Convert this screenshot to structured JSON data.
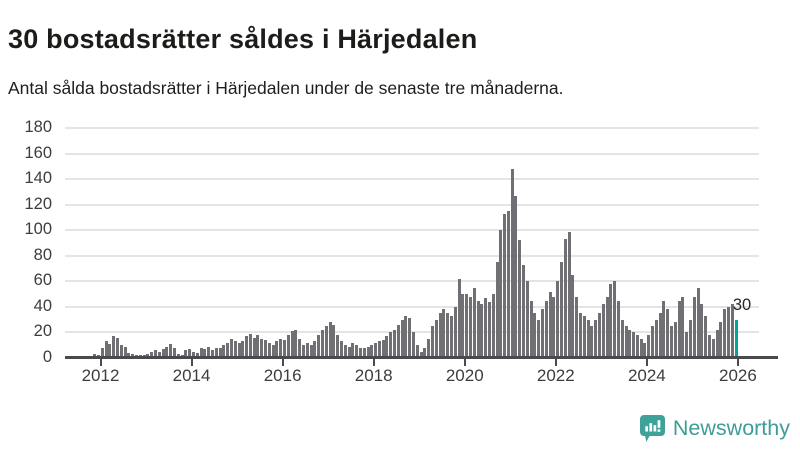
{
  "header": {
    "title": "30 bostadsrätter såldes i Härjedalen",
    "subtitle": "Antal sålda bostadsrätter i Härjedalen under de senaste tre månaderna."
  },
  "chart_data": {
    "type": "bar",
    "title": "30 bostadsrätter såldes i Härjedalen",
    "subtitle": "Antal sålda bostadsrätter i Härjedalen under de senaste tre månaderna.",
    "x_start_month": "2011-11",
    "frequency": "monthly",
    "values": [
      3,
      2,
      8,
      13,
      11,
      17,
      16,
      10,
      9,
      4,
      3,
      2,
      2,
      2,
      3,
      5,
      6,
      5,
      7,
      9,
      11,
      8,
      3,
      2,
      6,
      7,
      5,
      4,
      8,
      7,
      9,
      6,
      8,
      8,
      10,
      12,
      15,
      13,
      12,
      13,
      17,
      19,
      16,
      18,
      15,
      14,
      12,
      10,
      13,
      15,
      14,
      18,
      21,
      22,
      15,
      10,
      12,
      10,
      13,
      18,
      22,
      25,
      28,
      26,
      18,
      13,
      10,
      9,
      12,
      10,
      8,
      8,
      9,
      10,
      12,
      13,
      14,
      17,
      20,
      22,
      26,
      30,
      33,
      31,
      20,
      10,
      5,
      8,
      15,
      25,
      30,
      35,
      38,
      35,
      33,
      40,
      62,
      50,
      50,
      48,
      55,
      45,
      42,
      47,
      44,
      50,
      75,
      100,
      113,
      115,
      148,
      127,
      92,
      73,
      60,
      45,
      35,
      30,
      38,
      45,
      52,
      48,
      60,
      75,
      93,
      99,
      65,
      48,
      35,
      33,
      30,
      25,
      30,
      35,
      42,
      48,
      58,
      60,
      45,
      30,
      25,
      22,
      20,
      18,
      15,
      12,
      18,
      25,
      30,
      35,
      45,
      38,
      25,
      28,
      45,
      48,
      20,
      30,
      48,
      55,
      42,
      33,
      18,
      15,
      22,
      28,
      38,
      40,
      42,
      30
    ],
    "highlight_index": 169,
    "highlight_label": "30",
    "y_ticks": [
      0,
      20,
      40,
      60,
      80,
      100,
      120,
      140,
      160,
      180
    ],
    "x_tick_labels": [
      "2012",
      "2014",
      "2016",
      "2018",
      "2020",
      "2022",
      "2024",
      "2026"
    ],
    "x_tick_years": [
      2012,
      2014,
      2016,
      2018,
      2020,
      2022,
      2024,
      2026
    ],
    "ylim": [
      0,
      186
    ],
    "x_domain": [
      2011.22,
      2026.88
    ],
    "grid": true,
    "legend": "none",
    "colors": {
      "bar": "#706f74",
      "highlight": "#00a49b",
      "grid": "#e4e4e4",
      "axis": "#4a4a4e",
      "tick_text": "#3d3d3d",
      "title_text": "#1c1c1a"
    }
  },
  "footer": {
    "brand": "Newsworthy",
    "brand_color": "#3e9d96"
  }
}
